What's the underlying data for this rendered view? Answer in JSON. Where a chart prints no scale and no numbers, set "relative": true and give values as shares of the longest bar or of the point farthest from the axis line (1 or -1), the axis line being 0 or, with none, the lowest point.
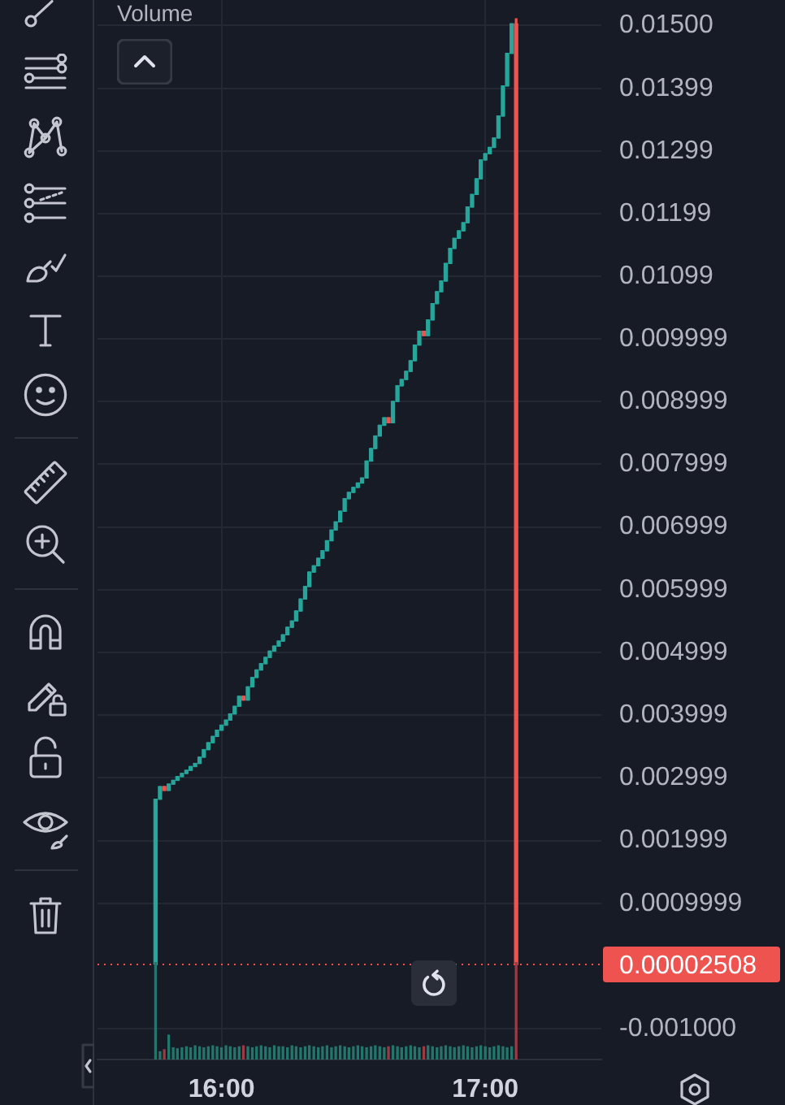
{
  "chart_data": [
    {
      "type": "candlestick",
      "x": [
        15.75,
        15.767,
        15.783,
        15.8,
        15.817,
        15.833,
        15.85,
        15.867,
        15.883,
        15.9,
        15.917,
        15.933,
        15.95,
        15.967,
        15.983,
        16,
        16.017,
        16.033,
        16.05,
        16.067,
        16.083,
        16.1,
        16.117,
        16.133,
        16.15,
        16.167,
        16.183,
        16.2,
        16.217,
        16.233,
        16.25,
        16.267,
        16.283,
        16.3,
        16.317,
        16.333,
        16.35,
        16.367,
        16.383,
        16.4,
        16.417,
        16.433,
        16.45,
        16.467,
        16.483,
        16.5,
        16.517,
        16.533,
        16.55,
        16.567,
        16.583,
        16.6,
        16.617,
        16.633,
        16.65,
        16.667,
        16.683,
        16.7,
        16.717,
        16.733,
        16.75,
        16.767,
        16.783,
        16.8,
        16.817,
        16.833,
        16.85,
        16.867,
        16.883,
        16.9,
        16.917,
        16.933,
        16.95,
        16.967,
        16.983,
        17,
        17.017,
        17.033,
        17.05,
        17.067,
        17.083,
        17.1,
        17.117
      ],
      "ohlc": [
        [
          3e-05,
          0.00266,
          3e-05,
          0.00266
        ],
        [
          0.00266,
          0.00286,
          0.00266,
          0.00286
        ],
        [
          0.00286,
          0.00286,
          0.0028,
          0.0028
        ],
        [
          0.0028,
          0.0029,
          0.0028,
          0.0029
        ],
        [
          0.0029,
          0.00296,
          0.0029,
          0.00296
        ],
        [
          0.00296,
          0.00302,
          0.00296,
          0.00302
        ],
        [
          0.00302,
          0.00307,
          0.00302,
          0.00307
        ],
        [
          0.00307,
          0.00312,
          0.00307,
          0.00312
        ],
        [
          0.00312,
          0.00318,
          0.00312,
          0.00318
        ],
        [
          0.00318,
          0.00323,
          0.00318,
          0.00323
        ],
        [
          0.00323,
          0.00333,
          0.00323,
          0.00333
        ],
        [
          0.00333,
          0.00345,
          0.00333,
          0.00345
        ],
        [
          0.00345,
          0.00356,
          0.00345,
          0.00356
        ],
        [
          0.00356,
          0.00366,
          0.00356,
          0.00366
        ],
        [
          0.00366,
          0.00376,
          0.00366,
          0.00376
        ],
        [
          0.00376,
          0.00384,
          0.00376,
          0.00384
        ],
        [
          0.00384,
          0.00392,
          0.00384,
          0.00392
        ],
        [
          0.00392,
          0.00402,
          0.00392,
          0.00402
        ],
        [
          0.00402,
          0.00414,
          0.00402,
          0.00414
        ],
        [
          0.00414,
          0.0043,
          0.00414,
          0.0043
        ],
        [
          0.0043,
          0.0043,
          0.00424,
          0.00424
        ],
        [
          0.00424,
          0.00445,
          0.00424,
          0.00445
        ],
        [
          0.00445,
          0.0046,
          0.00445,
          0.0046
        ],
        [
          0.0046,
          0.00472,
          0.0046,
          0.00472
        ],
        [
          0.00472,
          0.00482,
          0.00472,
          0.00482
        ],
        [
          0.00482,
          0.00492,
          0.00482,
          0.00492
        ],
        [
          0.00492,
          0.00502,
          0.00492,
          0.00502
        ],
        [
          0.00502,
          0.0051,
          0.00502,
          0.0051
        ],
        [
          0.0051,
          0.00518,
          0.0051,
          0.00518
        ],
        [
          0.00518,
          0.00528,
          0.00518,
          0.00528
        ],
        [
          0.00528,
          0.0054,
          0.00528,
          0.0054
        ],
        [
          0.0054,
          0.0055,
          0.0054,
          0.0055
        ],
        [
          0.0055,
          0.00566,
          0.0055,
          0.00566
        ],
        [
          0.00566,
          0.00585,
          0.00566,
          0.00585
        ],
        [
          0.00585,
          0.00605,
          0.00585,
          0.00605
        ],
        [
          0.00605,
          0.00628,
          0.00605,
          0.00628
        ],
        [
          0.00628,
          0.00638,
          0.00628,
          0.00638
        ],
        [
          0.00638,
          0.0065,
          0.00638,
          0.0065
        ],
        [
          0.0065,
          0.00662,
          0.0065,
          0.00662
        ],
        [
          0.00662,
          0.00678,
          0.00662,
          0.00678
        ],
        [
          0.00678,
          0.00695,
          0.00678,
          0.00695
        ],
        [
          0.00695,
          0.00708,
          0.00695,
          0.00708
        ],
        [
          0.00708,
          0.00725,
          0.00708,
          0.00725
        ],
        [
          0.00725,
          0.00745,
          0.00725,
          0.00745
        ],
        [
          0.00745,
          0.00755,
          0.00745,
          0.00755
        ],
        [
          0.00755,
          0.00763,
          0.00755,
          0.00763
        ],
        [
          0.00763,
          0.0077,
          0.00763,
          0.0077
        ],
        [
          0.0077,
          0.00778,
          0.0077,
          0.00778
        ],
        [
          0.00778,
          0.00805,
          0.00778,
          0.00805
        ],
        [
          0.00805,
          0.00825,
          0.00805,
          0.00825
        ],
        [
          0.00825,
          0.00845,
          0.00825,
          0.00845
        ],
        [
          0.00845,
          0.00862,
          0.00845,
          0.00862
        ],
        [
          0.00862,
          0.00874,
          0.00862,
          0.00874
        ],
        [
          0.00874,
          0.00874,
          0.00866,
          0.00866
        ],
        [
          0.00866,
          0.009,
          0.00866,
          0.009
        ],
        [
          0.009,
          0.00925,
          0.009,
          0.00925
        ],
        [
          0.00925,
          0.00935,
          0.00925,
          0.00935
        ],
        [
          0.00935,
          0.00948,
          0.00935,
          0.00948
        ],
        [
          0.00948,
          0.00965,
          0.00948,
          0.00965
        ],
        [
          0.00965,
          0.0099,
          0.00965,
          0.0099
        ],
        [
          0.0099,
          0.01012,
          0.0099,
          0.01012
        ],
        [
          0.01012,
          0.01012,
          0.01005,
          0.01005
        ],
        [
          0.01005,
          0.0103,
          0.01005,
          0.0103
        ],
        [
          0.0103,
          0.01056,
          0.0103,
          0.01056
        ],
        [
          0.01056,
          0.01075,
          0.01056,
          0.01075
        ],
        [
          0.01075,
          0.01092,
          0.01075,
          0.01092
        ],
        [
          0.01092,
          0.0112,
          0.01092,
          0.0112
        ],
        [
          0.0112,
          0.01144,
          0.0112,
          0.01144
        ],
        [
          0.01144,
          0.0116,
          0.01144,
          0.0116
        ],
        [
          0.0116,
          0.01172,
          0.0116,
          0.01172
        ],
        [
          0.01172,
          0.01185,
          0.01172,
          0.01185
        ],
        [
          0.01185,
          0.0121,
          0.01185,
          0.0121
        ],
        [
          0.0121,
          0.0123,
          0.0121,
          0.0123
        ],
        [
          0.0123,
          0.01255,
          0.0123,
          0.01255
        ],
        [
          0.01255,
          0.01285,
          0.01255,
          0.01285
        ],
        [
          0.01285,
          0.01295,
          0.01285,
          0.01295
        ],
        [
          0.01295,
          0.01305,
          0.01295,
          0.01305
        ],
        [
          0.01305,
          0.0132,
          0.01305,
          0.0132
        ],
        [
          0.0132,
          0.01355,
          0.0132,
          0.01355
        ],
        [
          0.01355,
          0.01403,
          0.01355,
          0.01403
        ],
        [
          0.01403,
          0.01455,
          0.01403,
          0.01455
        ],
        [
          0.01455,
          0.01502,
          0.01455,
          0.01502
        ],
        [
          0.01502,
          0.0151,
          2.508e-05,
          2.508e-05
        ]
      ],
      "colors": [
        "#26a69a",
        "#26a69a",
        "#ef5350",
        "#26a69a",
        "#26a69a",
        "#26a69a",
        "#26a69a",
        "#26a69a",
        "#26a69a",
        "#26a69a",
        "#26a69a",
        "#26a69a",
        "#26a69a",
        "#26a69a",
        "#26a69a",
        "#26a69a",
        "#26a69a",
        "#26a69a",
        "#26a69a",
        "#26a69a",
        "#ef5350",
        "#26a69a",
        "#26a69a",
        "#26a69a",
        "#26a69a",
        "#26a69a",
        "#26a69a",
        "#26a69a",
        "#26a69a",
        "#26a69a",
        "#26a69a",
        "#26a69a",
        "#26a69a",
        "#26a69a",
        "#26a69a",
        "#26a69a",
        "#26a69a",
        "#26a69a",
        "#26a69a",
        "#26a69a",
        "#26a69a",
        "#26a69a",
        "#26a69a",
        "#26a69a",
        "#26a69a",
        "#26a69a",
        "#26a69a",
        "#26a69a",
        "#26a69a",
        "#26a69a",
        "#26a69a",
        "#26a69a",
        "#26a69a",
        "#ef5350",
        "#26a69a",
        "#26a69a",
        "#26a69a",
        "#26a69a",
        "#26a69a",
        "#26a69a",
        "#26a69a",
        "#ef5350",
        "#26a69a",
        "#26a69a",
        "#26a69a",
        "#26a69a",
        "#26a69a",
        "#26a69a",
        "#26a69a",
        "#26a69a",
        "#26a69a",
        "#26a69a",
        "#26a69a",
        "#26a69a",
        "#26a69a",
        "#26a69a",
        "#26a69a",
        "#26a69a",
        "#26a69a",
        "#26a69a",
        "#26a69a",
        "#26a69a",
        "#ef5350"
      ],
      "xlim": [
        15.53,
        17.44
      ],
      "xticks": [
        {
          "value": 16,
          "label": "16:00"
        },
        {
          "value": 17,
          "label": "17:00"
        }
      ],
      "ylim": [
        -0.00149,
        0.0154
      ],
      "yticks": [
        {
          "value": 0.015,
          "label": "0.01500"
        },
        0.01399,
        0.01299,
        0.01199,
        0.01099,
        0.009999,
        0.008999,
        0.007999,
        0.006999,
        0.005999,
        0.004999,
        0.003999,
        0.002999,
        0.001999,
        0.0009999,
        {
          "value": -0.001,
          "label": "-0.001000"
        }
      ],
      "grid": true,
      "ref_lines": [
        {
          "axis": "y",
          "value": 2.508e-05,
          "label": "0.00002508",
          "color": "#ef5350",
          "line_style": "dotted"
        }
      ]
    },
    {
      "type": "bar",
      "title": "Volume",
      "relative": true,
      "x": [
        15.75,
        15.767,
        15.783,
        15.8,
        15.817,
        15.833,
        15.85,
        15.867,
        15.883,
        15.9,
        15.917,
        15.933,
        15.95,
        15.967,
        15.983,
        16,
        16.017,
        16.033,
        16.05,
        16.067,
        16.083,
        16.1,
        16.117,
        16.133,
        16.15,
        16.167,
        16.183,
        16.2,
        16.217,
        16.233,
        16.25,
        16.267,
        16.283,
        16.3,
        16.317,
        16.333,
        16.35,
        16.367,
        16.383,
        16.4,
        16.417,
        16.433,
        16.45,
        16.467,
        16.483,
        16.5,
        16.517,
        16.533,
        16.55,
        16.567,
        16.583,
        16.6,
        16.617,
        16.633,
        16.65,
        16.667,
        16.683,
        16.7,
        16.717,
        16.733,
        16.75,
        16.767,
        16.783,
        16.8,
        16.817,
        16.833,
        16.85,
        16.867,
        16.883,
        16.9,
        16.917,
        16.933,
        16.95,
        16.967,
        16.983,
        17,
        17.017,
        17.033,
        17.05,
        17.067,
        17.083,
        17.1,
        17.117
      ],
      "values": [
        1,
        0.08,
        0.1,
        0.25,
        0.12,
        0.11,
        0.12,
        0.13,
        0.12,
        0.14,
        0.13,
        0.12,
        0.13,
        0.14,
        0.13,
        0.12,
        0.14,
        0.13,
        0.12,
        0.13,
        0.14,
        0.13,
        0.12,
        0.13,
        0.14,
        0.13,
        0.12,
        0.14,
        0.13,
        0.13,
        0.12,
        0.14,
        0.13,
        0.12,
        0.13,
        0.14,
        0.13,
        0.12,
        0.13,
        0.14,
        0.12,
        0.13,
        0.14,
        0.13,
        0.12,
        0.13,
        0.14,
        0.13,
        0.12,
        0.13,
        0.14,
        0.13,
        0.12,
        0.13,
        0.14,
        0.13,
        0.12,
        0.13,
        0.14,
        0.13,
        0.12,
        0.13,
        0.14,
        0.13,
        0.12,
        0.13,
        0.14,
        0.13,
        0.12,
        0.13,
        0.14,
        0.13,
        0.12,
        0.13,
        0.14,
        0.13,
        0.12,
        0.13,
        0.14,
        0.13,
        0.12,
        0.13,
        1
      ],
      "colors": [
        "#22776d",
        "#22776d",
        "#9b3b43",
        "#22776d",
        "#22776d",
        "#22776d",
        "#22776d",
        "#22776d",
        "#22776d",
        "#22776d",
        "#22776d",
        "#22776d",
        "#22776d",
        "#22776d",
        "#22776d",
        "#22776d",
        "#22776d",
        "#22776d",
        "#22776d",
        "#22776d",
        "#9b3b43",
        "#22776d",
        "#22776d",
        "#22776d",
        "#22776d",
        "#22776d",
        "#22776d",
        "#22776d",
        "#22776d",
        "#22776d",
        "#22776d",
        "#22776d",
        "#22776d",
        "#22776d",
        "#22776d",
        "#22776d",
        "#22776d",
        "#22776d",
        "#22776d",
        "#22776d",
        "#22776d",
        "#22776d",
        "#22776d",
        "#22776d",
        "#22776d",
        "#22776d",
        "#22776d",
        "#22776d",
        "#22776d",
        "#22776d",
        "#22776d",
        "#22776d",
        "#22776d",
        "#9b3b43",
        "#22776d",
        "#22776d",
        "#22776d",
        "#22776d",
        "#22776d",
        "#22776d",
        "#22776d",
        "#9b3b43",
        "#22776d",
        "#22776d",
        "#22776d",
        "#22776d",
        "#22776d",
        "#22776d",
        "#22776d",
        "#22776d",
        "#22776d",
        "#22776d",
        "#22776d",
        "#22776d",
        "#22776d",
        "#22776d",
        "#22776d",
        "#22776d",
        "#22776d",
        "#22776d",
        "#22776d",
        "#22776d",
        "#9b3b43"
      ],
      "xlim": [
        15.53,
        17.44
      ],
      "tick_labels": false
    }
  ]
}
